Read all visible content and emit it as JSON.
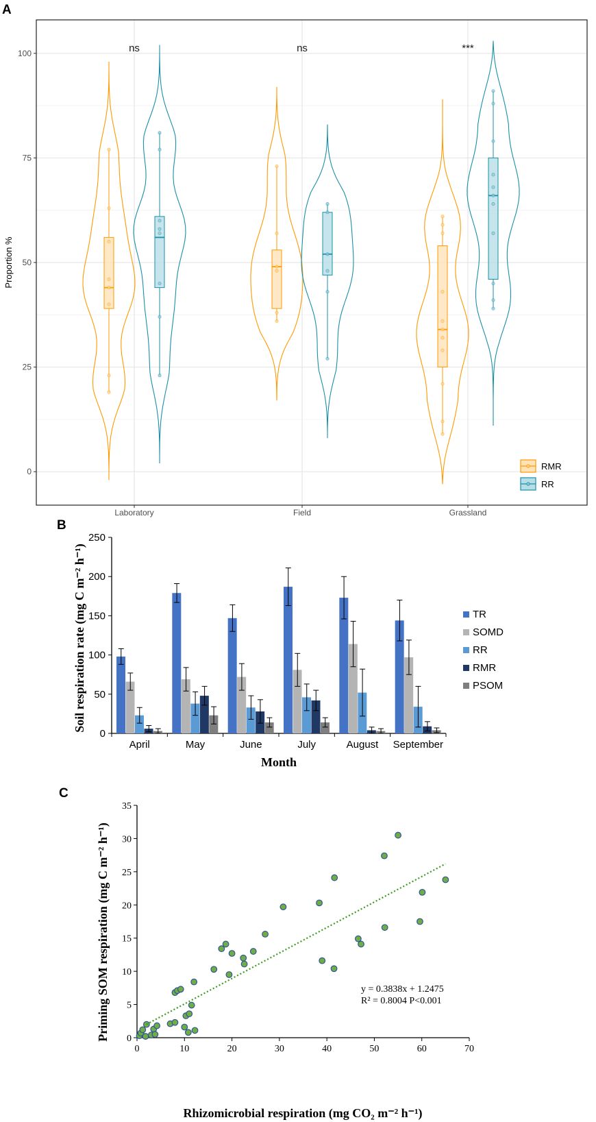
{
  "panels": {
    "a": "A",
    "b": "B",
    "c": "C"
  },
  "chart_data": [
    {
      "type": "violin",
      "panel": "A",
      "ylabel": "Proportion %",
      "ylim": [
        -8,
        108
      ],
      "yticks": [
        0,
        25,
        50,
        75,
        100
      ],
      "categories": [
        "Laboratory",
        "Field",
        "Grassland"
      ],
      "significance": [
        "ns",
        "ns",
        "***"
      ],
      "legend": [
        {
          "name": "RMR",
          "color": "#ff9900"
        },
        {
          "name": "RR",
          "color": "#1a8fa8"
        }
      ],
      "groups": [
        {
          "category": "Laboratory",
          "RMR": {
            "range": [
              -2,
              98
            ],
            "q1": 39,
            "median": 44,
            "q3": 56,
            "whisker_low": 19,
            "whisker_high": 77,
            "points": [
              19,
              23,
              40,
              44,
              46,
              55,
              63,
              77
            ]
          },
          "RR": {
            "range": [
              2,
              102
            ],
            "q1": 44,
            "median": 56,
            "q3": 61,
            "whisker_low": 23,
            "whisker_high": 81,
            "points": [
              23,
              37,
              45,
              57,
              58,
              60,
              77,
              81
            ]
          }
        },
        {
          "category": "Field",
          "RMR": {
            "range": [
              17,
              92
            ],
            "q1": 39,
            "median": 49,
            "q3": 53,
            "whisker_low": 36,
            "whisker_high": 73,
            "points": [
              36,
              38,
              48,
              49,
              57,
              73
            ]
          },
          "RR": {
            "range": [
              8,
              83
            ],
            "q1": 47,
            "median": 52,
            "q3": 62,
            "whisker_low": 27,
            "whisker_high": 64,
            "points": [
              27,
              43,
              48,
              52,
              62,
              64
            ]
          }
        },
        {
          "category": "Grassland",
          "RMR": {
            "range": [
              -3,
              89
            ],
            "q1": 25,
            "median": 34,
            "q3": 54,
            "whisker_low": 9,
            "whisker_high": 61,
            "points": [
              9,
              12,
              21,
              29,
              32,
              34,
              36,
              43,
              57,
              59,
              61
            ]
          },
          "RR": {
            "range": [
              11,
              103
            ],
            "q1": 46,
            "median": 66,
            "q3": 75,
            "whisker_low": 39,
            "whisker_high": 91,
            "points": [
              39,
              41,
              45,
              57,
              64,
              66,
              68,
              71,
              79,
              88,
              91
            ]
          }
        }
      ]
    },
    {
      "type": "bar",
      "panel": "B",
      "title": "",
      "xlabel": "Month",
      "ylabel": "Soil respiration rate (mg C m⁻² h⁻¹)",
      "ylim": [
        0,
        250
      ],
      "yticks": [
        0,
        50,
        100,
        150,
        200,
        250
      ],
      "categories": [
        "April",
        "May",
        "June",
        "July",
        "August",
        "September"
      ],
      "series": [
        {
          "name": "TR",
          "color": "#4472c4",
          "values": [
            98,
            179,
            147,
            187,
            173,
            144
          ],
          "errors": [
            10,
            12,
            17,
            24,
            27,
            26
          ]
        },
        {
          "name": "SOMD",
          "color": "#b4b4b4",
          "values": [
            66,
            69,
            72,
            81,
            114,
            97
          ],
          "errors": [
            11,
            15,
            17,
            21,
            29,
            22
          ]
        },
        {
          "name": "RR",
          "color": "#5b9bd5",
          "values": [
            23,
            38,
            33,
            46,
            52,
            34
          ],
          "errors": [
            10,
            15,
            15,
            17,
            30,
            26
          ]
        },
        {
          "name": "RMR",
          "color": "#203864",
          "values": [
            6,
            48,
            28,
            42,
            4,
            9
          ],
          "errors": [
            4,
            12,
            15,
            13,
            4,
            6
          ]
        },
        {
          "name": "PSOM",
          "color": "#7f7f7f",
          "values": [
            3,
            23,
            14,
            14,
            3,
            4
          ],
          "errors": [
            3,
            11,
            6,
            6,
            3,
            3
          ]
        }
      ]
    },
    {
      "type": "scatter",
      "panel": "C",
      "xlabel": "Rhizomicrobial respiration (mg CO₂ m⁻² h⁻¹)",
      "ylabel": "Priming SOM respiration (mg C m⁻² h⁻¹)",
      "xlim": [
        0,
        70
      ],
      "ylim": [
        0,
        35
      ],
      "xticks": [
        0,
        10,
        20,
        30,
        40,
        50,
        60,
        70
      ],
      "yticks": [
        0,
        5,
        10,
        15,
        20,
        25,
        30,
        35
      ],
      "trendline": {
        "slope": 0.3838,
        "intercept": 1.2475,
        "x_range": [
          2,
          65
        ]
      },
      "annotation": {
        "line1": "y = 0.3838x + 1.2475",
        "line2": "R² = 0.8004 P<0.001"
      },
      "points": [
        [
          0.5,
          0.3
        ],
        [
          0.8,
          0.7
        ],
        [
          1.2,
          1.2
        ],
        [
          1.8,
          0.2
        ],
        [
          2,
          2
        ],
        [
          3,
          0.4
        ],
        [
          3.5,
          1.3
        ],
        [
          3.8,
          0.5
        ],
        [
          4.2,
          1.8
        ],
        [
          7,
          2.1
        ],
        [
          8,
          2.3
        ],
        [
          8,
          6.8
        ],
        [
          8.5,
          7.1
        ],
        [
          9.2,
          7.3
        ],
        [
          10,
          1.6
        ],
        [
          10.3,
          3.3
        ],
        [
          10.8,
          0.8
        ],
        [
          11,
          3.6
        ],
        [
          11.5,
          4.9
        ],
        [
          12,
          8.4
        ],
        [
          12.2,
          1.1
        ],
        [
          16.2,
          10.3
        ],
        [
          17.8,
          13.4
        ],
        [
          18.7,
          14.1
        ],
        [
          19.4,
          9.5
        ],
        [
          20,
          12.7
        ],
        [
          22.4,
          12
        ],
        [
          22.6,
          11.1
        ],
        [
          24.5,
          13
        ],
        [
          27,
          15.6
        ],
        [
          30.8,
          19.7
        ],
        [
          38.4,
          20.3
        ],
        [
          39,
          11.6
        ],
        [
          41.5,
          10.4
        ],
        [
          41.6,
          24.1
        ],
        [
          46.6,
          14.9
        ],
        [
          47.2,
          14.1
        ],
        [
          52.1,
          27.4
        ],
        [
          52.2,
          16.6
        ],
        [
          55,
          30.5
        ],
        [
          59.6,
          17.5
        ],
        [
          60.1,
          21.9
        ],
        [
          65,
          23.8
        ]
      ]
    }
  ]
}
